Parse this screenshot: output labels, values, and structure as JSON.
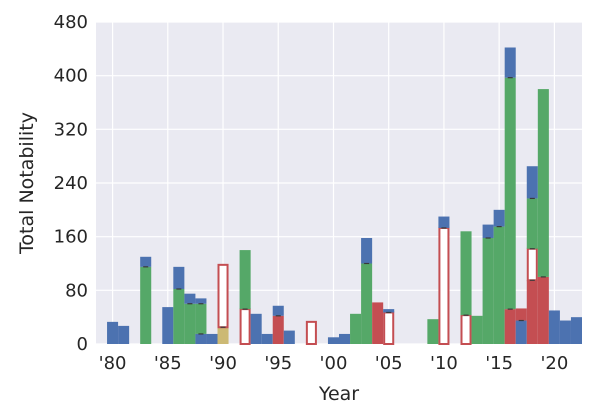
{
  "chart_data": {
    "type": "bar",
    "stacked": true,
    "title": "",
    "xlabel": "Year",
    "ylabel": "Total Notability",
    "xlim": [
      1978.5,
      2022.5
    ],
    "ylim": [
      0,
      480
    ],
    "yticks": [
      0,
      80,
      160,
      240,
      320,
      400,
      480
    ],
    "xticks": [
      1980,
      1985,
      1990,
      1995,
      2000,
      2005,
      2010,
      2015,
      2020
    ],
    "xtick_labels": [
      "'80",
      "'85",
      "'90",
      "'95",
      "'00",
      "'05",
      "'10",
      "'15",
      "'20"
    ],
    "grid": true,
    "legend": "none",
    "colors": {
      "background": "#eaeaf2",
      "grid": "#ffffff",
      "blue": "#4c72b0",
      "green": "#55a868",
      "red": "#c44e52",
      "tan": "#ccb974",
      "hollow_edge": "#c44e52",
      "hollow_fill": "#ffffff"
    },
    "bars": [
      {
        "x": 1980,
        "segments": [
          {
            "color": "blue",
            "value": 33
          }
        ]
      },
      {
        "x": 1981,
        "segments": [
          {
            "color": "blue",
            "value": 27
          }
        ]
      },
      {
        "x": 1983,
        "segments": [
          {
            "color": "green",
            "value": 115
          },
          {
            "color": "blue",
            "value": 15
          }
        ]
      },
      {
        "x": 1985,
        "segments": [
          {
            "color": "blue",
            "value": 55
          }
        ]
      },
      {
        "x": 1986,
        "segments": [
          {
            "color": "green",
            "value": 82
          },
          {
            "color": "blue",
            "value": 33
          }
        ]
      },
      {
        "x": 1987,
        "segments": [
          {
            "color": "green",
            "value": 60
          },
          {
            "color": "blue",
            "value": 15
          }
        ]
      },
      {
        "x": 1988,
        "segments": [
          {
            "color": "blue",
            "value": 15
          },
          {
            "color": "green",
            "value": 45
          },
          {
            "color": "blue",
            "value": 8
          }
        ]
      },
      {
        "x": 1989,
        "segments": [
          {
            "color": "blue",
            "value": 15
          }
        ]
      },
      {
        "x": 1990,
        "segments": [
          {
            "color": "tan",
            "value": 25
          },
          {
            "color": "hollow",
            "value": 93
          }
        ]
      },
      {
        "x": 1992,
        "segments": [
          {
            "color": "hollow",
            "value": 52
          },
          {
            "color": "green",
            "value": 88
          }
        ]
      },
      {
        "x": 1993,
        "segments": [
          {
            "color": "blue",
            "value": 45
          }
        ]
      },
      {
        "x": 1994,
        "segments": [
          {
            "color": "blue",
            "value": 15
          }
        ]
      },
      {
        "x": 1995,
        "segments": [
          {
            "color": "red",
            "value": 42
          },
          {
            "color": "blue",
            "value": 15
          }
        ]
      },
      {
        "x": 1996,
        "segments": [
          {
            "color": "blue",
            "value": 20
          }
        ]
      },
      {
        "x": 1998,
        "segments": [
          {
            "color": "hollow",
            "value": 33
          }
        ]
      },
      {
        "x": 2000,
        "segments": [
          {
            "color": "blue",
            "value": 10
          }
        ]
      },
      {
        "x": 2001,
        "segments": [
          {
            "color": "blue",
            "value": 15
          }
        ]
      },
      {
        "x": 2002,
        "segments": [
          {
            "color": "green",
            "value": 45
          }
        ]
      },
      {
        "x": 2003,
        "segments": [
          {
            "color": "green",
            "value": 120
          },
          {
            "color": "blue",
            "value": 38
          }
        ]
      },
      {
        "x": 2004,
        "segments": [
          {
            "color": "red",
            "value": 62
          }
        ]
      },
      {
        "x": 2005,
        "segments": [
          {
            "color": "hollow",
            "value": 47
          },
          {
            "color": "blue",
            "value": 5
          }
        ]
      },
      {
        "x": 2009,
        "segments": [
          {
            "color": "green",
            "value": 37
          }
        ]
      },
      {
        "x": 2010,
        "segments": [
          {
            "color": "hollow",
            "value": 173
          },
          {
            "color": "blue",
            "value": 17
          }
        ]
      },
      {
        "x": 2012,
        "segments": [
          {
            "color": "hollow",
            "value": 43
          },
          {
            "color": "green",
            "value": 125
          }
        ]
      },
      {
        "x": 2013,
        "segments": [
          {
            "color": "green",
            "value": 42
          }
        ]
      },
      {
        "x": 2014,
        "segments": [
          {
            "color": "green",
            "value": 158
          },
          {
            "color": "blue",
            "value": 20
          }
        ]
      },
      {
        "x": 2015,
        "segments": [
          {
            "color": "green",
            "value": 175
          },
          {
            "color": "blue",
            "value": 25
          }
        ]
      },
      {
        "x": 2016,
        "segments": [
          {
            "color": "red",
            "value": 52
          },
          {
            "color": "green",
            "value": 345
          },
          {
            "color": "blue",
            "value": 45
          }
        ]
      },
      {
        "x": 2017,
        "segments": [
          {
            "color": "blue",
            "value": 35
          },
          {
            "color": "red",
            "value": 18
          }
        ]
      },
      {
        "x": 2018,
        "segments": [
          {
            "color": "red",
            "value": 95
          },
          {
            "color": "hollow",
            "value": 47
          },
          {
            "color": "green",
            "value": 75
          },
          {
            "color": "blue",
            "value": 48
          }
        ]
      },
      {
        "x": 2019,
        "segments": [
          {
            "color": "red",
            "value": 100
          },
          {
            "color": "green",
            "value": 280
          }
        ]
      },
      {
        "x": 2020,
        "segments": [
          {
            "color": "blue",
            "value": 50
          }
        ]
      },
      {
        "x": 2021,
        "segments": [
          {
            "color": "blue",
            "value": 35
          }
        ]
      },
      {
        "x": 2022,
        "segments": [
          {
            "color": "blue",
            "value": 40
          }
        ]
      }
    ]
  }
}
